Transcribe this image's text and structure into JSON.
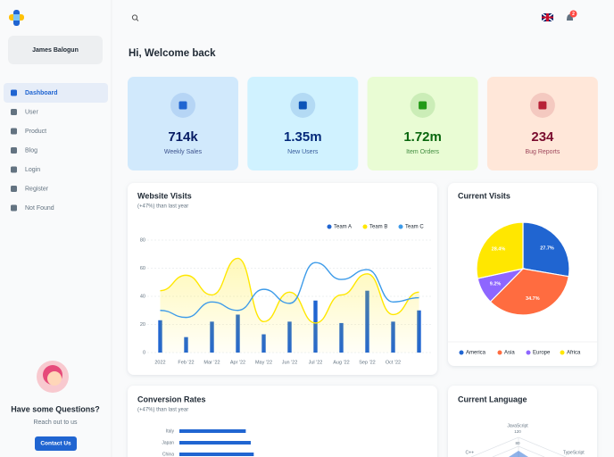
{
  "sidebar": {
    "user": "James Balogun",
    "nav": [
      "Dashboard",
      "User",
      "Product",
      "Blog",
      "Login",
      "Register",
      "Not Found"
    ],
    "help_title": "Have some Questions?",
    "help_text": "Reach out to us",
    "help_button": "Contact Us"
  },
  "header": {
    "notifications": "2"
  },
  "welcome": "Hi, Welcome back",
  "stats": [
    {
      "value": "714k",
      "label": "Weekly Sales",
      "bg": "#d1e9fc",
      "color": "#061b64",
      "icon": "#2065d1"
    },
    {
      "value": "1.35m",
      "label": "New Users",
      "bg": "#d0f2ff",
      "color": "#04297a",
      "icon": "#0c53b7"
    },
    {
      "value": "1.72m",
      "label": "Item Orders",
      "bg": "#e9fcd4",
      "color": "#08660d",
      "icon": "#229a16"
    },
    {
      "value": "234",
      "label": "Bug Reports",
      "bg": "#ffe7d9",
      "color": "#7a0c2e",
      "icon": "#b72136"
    }
  ],
  "chart_data": [
    {
      "type": "combo",
      "title": "Website Visits",
      "subtitle": "(+47%) than last year",
      "categories": [
        "2022",
        "Feb '22",
        "Mar '22",
        "Apr '22",
        "May '22",
        "Jun '22",
        "Jul '22",
        "Aug '22",
        "Sep '22",
        "Oct '22",
        null
      ],
      "series": [
        {
          "name": "Team A",
          "color": "#2065d1",
          "kind": "bar",
          "values": [
            23,
            11,
            22,
            27,
            13,
            22,
            37,
            21,
            44,
            22,
            30
          ]
        },
        {
          "name": "Team B",
          "color": "#ffe700",
          "kind": "area",
          "values": [
            44,
            55,
            41,
            67,
            22,
            43,
            21,
            41,
            56,
            27,
            43
          ]
        },
        {
          "name": "Team C",
          "color": "#3d9be9",
          "kind": "line",
          "values": [
            30,
            25,
            36,
            30,
            45,
            35,
            64,
            52,
            59,
            36,
            39
          ]
        }
      ],
      "ylim": [
        0,
        80
      ],
      "yticks": [
        0,
        20,
        40,
        60,
        80
      ]
    },
    {
      "type": "pie",
      "title": "Current Visits",
      "categories": [
        "America",
        "Asia",
        "Europe",
        "Africa"
      ],
      "values": [
        27.7,
        34.7,
        9.2,
        28.4
      ],
      "value_labels": [
        "27.7%",
        "34.7%",
        "9.2%",
        "28.4%"
      ],
      "colors": [
        "#2065d1",
        "#ff6c40",
        "#8e66ff",
        "#ffe700"
      ]
    },
    {
      "type": "hbar",
      "title": "Conversion Rates",
      "subtitle": "(+47%) than last year",
      "categories": [
        "Italy",
        "Japan",
        "China"
      ],
      "values": [
        400,
        430,
        448
      ],
      "color": "#2065d1",
      "xlim": [
        0,
        1500
      ]
    },
    {
      "type": "radar",
      "title": "Current Language",
      "categories": [
        "JavaScript",
        "TypeScript",
        "C++"
      ],
      "ticks": [
        120,
        80
      ]
    }
  ]
}
